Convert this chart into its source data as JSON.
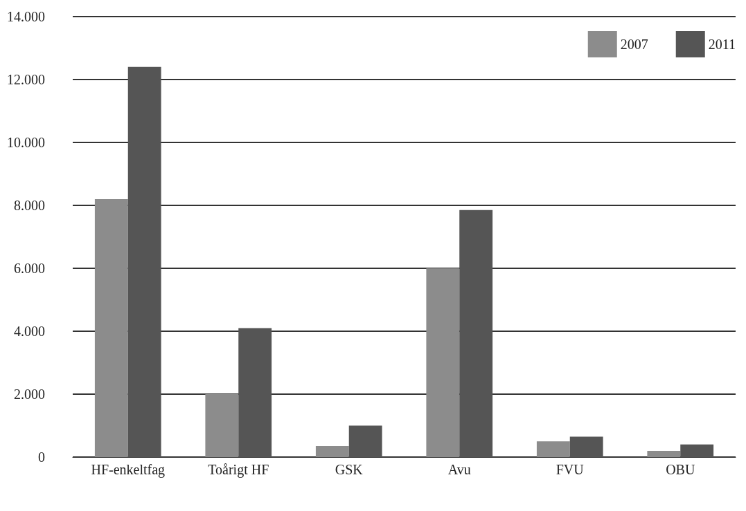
{
  "chart_data": {
    "type": "bar",
    "categories": [
      "HF-enkeltfag",
      "Toårigt HF",
      "GSK",
      "Avu",
      "FVU",
      "OBU"
    ],
    "series": [
      {
        "name": "2007",
        "color": "#8c8c8c",
        "values": [
          8200,
          2000,
          350,
          6000,
          500,
          200
        ]
      },
      {
        "name": "2011",
        "color": "#555555",
        "values": [
          12400,
          4100,
          1000,
          7850,
          650,
          400
        ]
      }
    ],
    "ylim": [
      0,
      14000
    ],
    "yticks": [
      {
        "value": 0,
        "label": "0"
      },
      {
        "value": 2000,
        "label": "2.000"
      },
      {
        "value": 4000,
        "label": "4.000"
      },
      {
        "value": 6000,
        "label": "6.000"
      },
      {
        "value": 8000,
        "label": "8.000"
      },
      {
        "value": 10000,
        "label": "10.000"
      },
      {
        "value": 12000,
        "label": "12.000"
      },
      {
        "value": 14000,
        "label": "14.000"
      }
    ],
    "grid": "y",
    "legend": "top right"
  }
}
